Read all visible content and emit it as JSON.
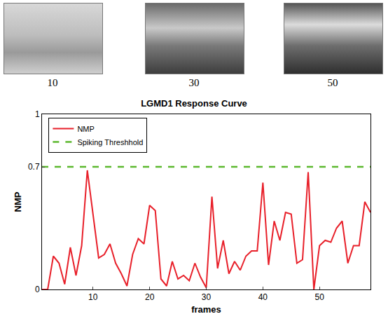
{
  "image_captions": [
    "10",
    "30",
    "50"
  ],
  "chart_data": {
    "type": "line",
    "title": "LGMD1 Response Curve",
    "x_label": "frames",
    "y_label": "NMP",
    "x": [
      1,
      2,
      3,
      4,
      5,
      6,
      7,
      8,
      9,
      10,
      11,
      12,
      13,
      14,
      15,
      16,
      17,
      18,
      19,
      20,
      21,
      22,
      23,
      24,
      25,
      26,
      27,
      28,
      29,
      30,
      31,
      32,
      33,
      34,
      35,
      36,
      37,
      38,
      39,
      40,
      41,
      42,
      43,
      44,
      45,
      46,
      47,
      48,
      49,
      50,
      51,
      52,
      53,
      54,
      55,
      56,
      57,
      58,
      59
    ],
    "series": [
      {
        "name": "NMP",
        "color": "#e8202a",
        "line_style": "solid",
        "values": [
          0,
          0,
          0.19,
          0.15,
          0.03,
          0.24,
          0.08,
          0.25,
          0.68,
          0.44,
          0.18,
          0.2,
          0.26,
          0.15,
          0.09,
          0.02,
          0.2,
          0.29,
          0.26,
          0.48,
          0.45,
          0.06,
          0.02,
          0.16,
          0.06,
          0.08,
          0.05,
          0.15,
          0.07,
          0.01,
          0.53,
          0.12,
          0.28,
          0.09,
          0.16,
          0.11,
          0.19,
          0.22,
          0.22,
          0.61,
          0.14,
          0.39,
          0.28,
          0.44,
          0.43,
          0.15,
          0.17,
          0.67,
          0,
          0.25,
          0.28,
          0.27,
          0.35,
          0.39,
          0.15,
          0.25,
          0.25,
          0.5,
          0.44
        ]
      },
      {
        "name": "Spiking Threshhold",
        "color": "#5cb82e",
        "line_style": "dashed",
        "values": [
          0.7,
          0.7,
          0.7,
          0.7,
          0.7,
          0.7,
          0.7,
          0.7,
          0.7,
          0.7,
          0.7,
          0.7,
          0.7,
          0.7,
          0.7,
          0.7,
          0.7,
          0.7,
          0.7,
          0.7,
          0.7,
          0.7,
          0.7,
          0.7,
          0.7,
          0.7,
          0.7,
          0.7,
          0.7,
          0.7,
          0.7,
          0.7,
          0.7,
          0.7,
          0.7,
          0.7,
          0.7,
          0.7,
          0.7,
          0.7,
          0.7,
          0.7,
          0.7,
          0.7,
          0.7,
          0.7,
          0.7,
          0.7,
          0.7,
          0.7,
          0.7,
          0.7,
          0.7,
          0.7,
          0.7,
          0.7,
          0.7,
          0.7,
          0.7
        ]
      }
    ],
    "xlim": [
      1,
      59
    ],
    "xticks": [
      10,
      20,
      30,
      40,
      50
    ],
    "ylim": [
      0,
      1
    ],
    "yticks": [
      0,
      0.7,
      1
    ],
    "legend": "top-left",
    "grid": false
  }
}
